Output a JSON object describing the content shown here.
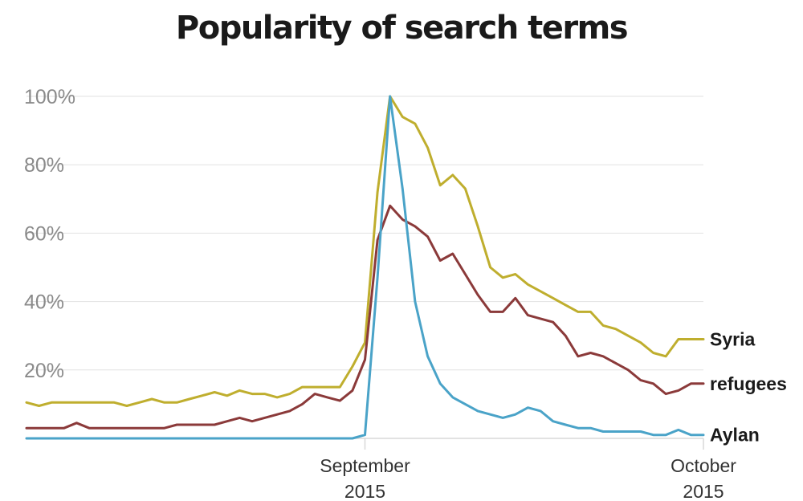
{
  "chart_data": {
    "type": "line",
    "title": "Popularity of search terms",
    "xlabel": "",
    "ylabel": "",
    "ylim": [
      0,
      100
    ],
    "yticks": [
      {
        "value": 20,
        "label": "20%"
      },
      {
        "value": 40,
        "label": "40%"
      },
      {
        "value": 60,
        "label": "60%"
      },
      {
        "value": 80,
        "label": "80%"
      },
      {
        "value": 100,
        "label": "100%"
      }
    ],
    "xrange": [
      0,
      54
    ],
    "xticks": [
      {
        "value": 27,
        "line1": "September",
        "line2": "2015"
      },
      {
        "value": 54,
        "line1": "October",
        "line2": "2015"
      }
    ],
    "x": [
      0,
      1,
      2,
      3,
      4,
      5,
      6,
      7,
      8,
      9,
      10,
      11,
      12,
      13,
      14,
      15,
      16,
      17,
      18,
      19,
      20,
      21,
      22,
      23,
      24,
      25,
      26,
      27,
      28,
      29,
      30,
      31,
      32,
      33,
      34,
      35,
      36,
      37,
      38,
      39,
      40,
      41,
      42,
      43,
      44,
      45,
      46,
      47,
      48,
      49,
      50,
      51,
      52,
      53,
      54
    ],
    "series": [
      {
        "name": "Syria",
        "color": "#bfae2e",
        "values": [
          10.5,
          9.5,
          10.5,
          10.5,
          10.5,
          10.5,
          10.5,
          10.5,
          9.5,
          10.5,
          11.5,
          10.5,
          10.5,
          11.5,
          12.5,
          13.5,
          12.5,
          14,
          13,
          13,
          12,
          13,
          15,
          15,
          15,
          15,
          21,
          28,
          72,
          100,
          94,
          92,
          85,
          74,
          77,
          73,
          62,
          50,
          47,
          48,
          45,
          43,
          41,
          39,
          37,
          37,
          33,
          32,
          30,
          28,
          25,
          24,
          29,
          29,
          29
        ]
      },
      {
        "name": "refugees",
        "color": "#8b3a3a",
        "values": [
          3,
          3,
          3,
          3,
          4.5,
          3,
          3,
          3,
          3,
          3,
          3,
          3,
          4,
          4,
          4,
          4,
          5,
          6,
          5,
          6,
          7,
          8,
          10,
          13,
          12,
          11,
          14,
          23,
          58,
          68,
          64,
          62,
          59,
          52,
          54,
          48,
          42,
          37,
          37,
          41,
          36,
          35,
          34,
          30,
          24,
          25,
          24,
          22,
          20,
          17,
          16,
          13,
          14,
          16,
          16
        ]
      },
      {
        "name": "Aylan",
        "color": "#4aa3c8",
        "values": [
          0,
          0,
          0,
          0,
          0,
          0,
          0,
          0,
          0,
          0,
          0,
          0,
          0,
          0,
          0,
          0,
          0,
          0,
          0,
          0,
          0,
          0,
          0,
          0,
          0,
          0,
          0,
          1,
          47,
          100,
          73,
          40,
          24,
          16,
          12,
          10,
          8,
          7,
          6,
          7,
          9,
          8,
          5,
          4,
          3,
          3,
          2,
          2,
          2,
          2,
          1,
          1,
          2.5,
          1,
          1
        ]
      }
    ]
  }
}
